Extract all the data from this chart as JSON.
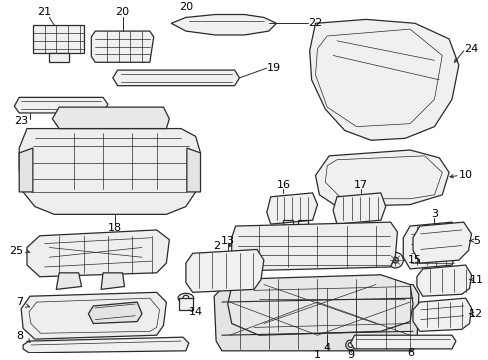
{
  "background_color": "#ffffff",
  "line_color": "#2a2a2a",
  "text_color": "#000000",
  "fig_width": 4.89,
  "fig_height": 3.6,
  "dpi": 100,
  "label_fontsize": 7.5,
  "lw_main": 0.9,
  "lw_detail": 0.5,
  "lw_leader": 0.7
}
